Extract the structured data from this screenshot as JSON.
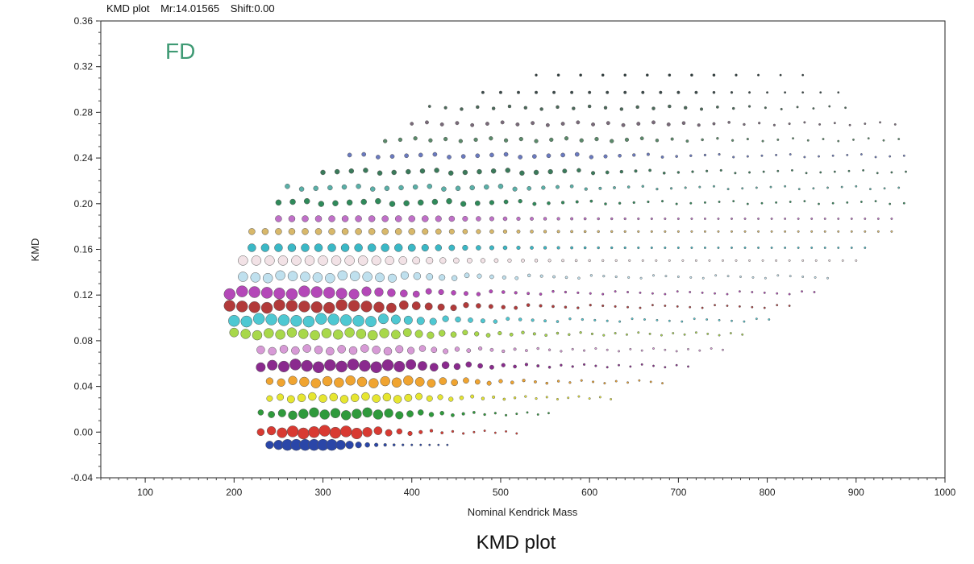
{
  "window": {
    "title": "KMD plot",
    "mr_text": "Mr:14.01565",
    "shift_text": "Shift:0.00"
  },
  "caption": "KMD plot",
  "chart_data": {
    "type": "scatter",
    "title": "",
    "annotation": "FD",
    "xlabel": "Nominal Kendrick Mass",
    "ylabel": "KMD",
    "xlim": [
      50,
      1000
    ],
    "ylim": [
      -0.04,
      0.36
    ],
    "xticks": [
      100,
      200,
      300,
      400,
      500,
      600,
      700,
      800,
      900,
      1000
    ],
    "yticks": [
      "-0.04",
      "0.00",
      "0.04",
      "0.08",
      "0.12",
      "0.16",
      "0.20",
      "0.24",
      "0.28",
      "0.32",
      "0.36"
    ],
    "grid": false,
    "legend": "none",
    "series": [
      {
        "kmd": -0.01,
        "color": "#2a46a8",
        "x_start": 240,
        "x_end": 440,
        "x_step": 10,
        "peak_x": 285,
        "max_size": 7
      },
      {
        "kmd": 0.0,
        "color": "#d83a32",
        "x_start": 230,
        "x_end": 520,
        "x_step": 12,
        "peak_x": 300,
        "max_size": 7
      },
      {
        "kmd": 0.016,
        "color": "#2f9a3c",
        "x_start": 230,
        "x_end": 560,
        "x_step": 12,
        "peak_x": 320,
        "max_size": 6
      },
      {
        "kmd": 0.03,
        "color": "#e6e630",
        "x_start": 240,
        "x_end": 630,
        "x_step": 12,
        "peak_x": 330,
        "max_size": 5
      },
      {
        "kmd": 0.044,
        "color": "#f0a430",
        "x_start": 240,
        "x_end": 690,
        "x_step": 13,
        "peak_x": 340,
        "max_size": 6
      },
      {
        "kmd": 0.058,
        "color": "#8a2a8e",
        "x_start": 230,
        "x_end": 720,
        "x_step": 13,
        "peak_x": 320,
        "max_size": 7
      },
      {
        "kmd": 0.072,
        "color": "#d79ad6",
        "x_start": 230,
        "x_end": 750,
        "x_step": 13,
        "peak_x": 300,
        "max_size": 5
      },
      {
        "kmd": 0.086,
        "color": "#a8d84a",
        "x_start": 200,
        "x_end": 780,
        "x_step": 13,
        "peak_x": 290,
        "max_size": 6
      },
      {
        "kmd": 0.098,
        "color": "#4ec8d2",
        "x_start": 200,
        "x_end": 810,
        "x_step": 14,
        "peak_x": 270,
        "max_size": 7
      },
      {
        "kmd": 0.11,
        "color": "#b23a3a",
        "x_start": 195,
        "x_end": 830,
        "x_step": 14,
        "peak_x": 270,
        "max_size": 7
      },
      {
        "kmd": 0.122,
        "color": "#b448b8",
        "x_start": 195,
        "x_end": 860,
        "x_step": 14,
        "peak_x": 230,
        "max_size": 7
      },
      {
        "kmd": 0.136,
        "color": "#bfe0ee",
        "x_start": 210,
        "x_end": 880,
        "x_step": 14,
        "peak_x": 260,
        "max_size": 6
      },
      {
        "kmd": 0.149,
        "color": "#f2e2e6",
        "x_start": 210,
        "x_end": 900,
        "x_step": 15,
        "peak_x": 260,
        "max_size": 6
      },
      {
        "kmd": 0.162,
        "color": "#3ab8c6",
        "x_start": 220,
        "x_end": 920,
        "x_step": 15,
        "peak_x": 280,
        "max_size": 5
      },
      {
        "kmd": 0.175,
        "color": "#d8b86a",
        "x_start": 220,
        "x_end": 940,
        "x_step": 15,
        "peak_x": 280,
        "max_size": 4
      },
      {
        "kmd": 0.188,
        "color": "#c070c8",
        "x_start": 250,
        "x_end": 950,
        "x_step": 15,
        "peak_x": 300,
        "max_size": 4
      },
      {
        "kmd": 0.201,
        "color": "#2f8a5a",
        "x_start": 250,
        "x_end": 960,
        "x_step": 16,
        "peak_x": 320,
        "max_size": 3.5
      },
      {
        "kmd": 0.214,
        "color": "#5ab0a8",
        "x_start": 260,
        "x_end": 960,
        "x_step": 16,
        "peak_x": 360,
        "max_size": 3
      },
      {
        "kmd": 0.228,
        "color": "#3a7a5a",
        "x_start": 300,
        "x_end": 960,
        "x_step": 16,
        "peak_x": 420,
        "max_size": 3
      },
      {
        "kmd": 0.242,
        "color": "#6a7ac0",
        "x_start": 330,
        "x_end": 960,
        "x_step": 16,
        "peak_x": 450,
        "max_size": 2.6
      },
      {
        "kmd": 0.256,
        "color": "#5a8a6a",
        "x_start": 370,
        "x_end": 960,
        "x_step": 17,
        "peak_x": 500,
        "max_size": 2.4
      },
      {
        "kmd": 0.27,
        "color": "#7a6a7a",
        "x_start": 400,
        "x_end": 960,
        "x_step": 17,
        "peak_x": 550,
        "max_size": 2.2
      },
      {
        "kmd": 0.284,
        "color": "#4a6a5a",
        "x_start": 420,
        "x_end": 900,
        "x_step": 18,
        "peak_x": 580,
        "max_size": 2
      },
      {
        "kmd": 0.298,
        "color": "#3a4a4a",
        "x_start": 480,
        "x_end": 880,
        "x_step": 20,
        "peak_x": 600,
        "max_size": 1.8
      },
      {
        "kmd": 0.312,
        "color": "#2a3a3a",
        "x_start": 540,
        "x_end": 840,
        "x_step": 25,
        "peak_x": 650,
        "max_size": 1.6
      }
    ]
  }
}
